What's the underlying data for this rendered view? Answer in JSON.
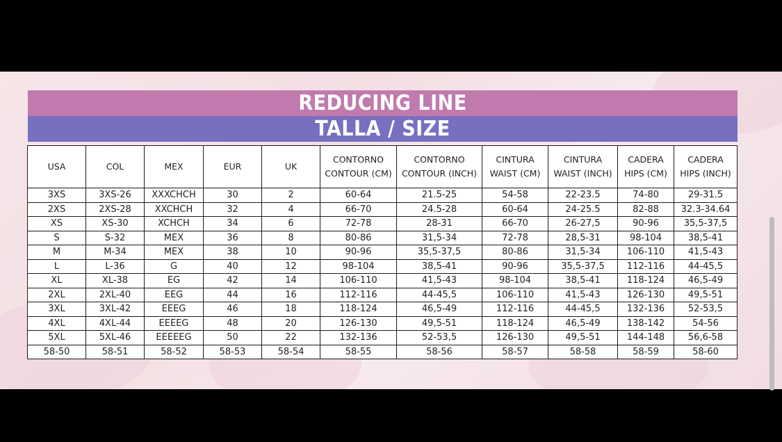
{
  "title": "REDUCING LINE",
  "subtitle": "TALLA / SIZE",
  "columns": [
    [
      "USA"
    ],
    [
      "COL"
    ],
    [
      "MEX"
    ],
    [
      "EUR"
    ],
    [
      "UK"
    ],
    [
      "CONTORNO",
      "CONTOUR (CM)"
    ],
    [
      "CONTORNO",
      "CONTOUR (INCH)"
    ],
    [
      "CINTURA",
      "WAIST (CM)"
    ],
    [
      "CINTURA",
      "WAIST (INCH)"
    ],
    [
      "CADERA",
      "HIPS (CM)"
    ],
    [
      "CADERA",
      "HIPS (INCH)"
    ]
  ],
  "rows": [
    [
      "3XS",
      "3XS-26",
      "XXXCHCH",
      "30",
      "2",
      "60-64",
      "21.5-25",
      "54-58",
      "22-23.5",
      "74-80",
      "29-31.5"
    ],
    [
      "2XS",
      "2XS-28",
      "XXCHCH",
      "32",
      "4",
      "66-70",
      "24.5-28",
      "60-64",
      "24-25.5",
      "82-88",
      "32.3-34.64"
    ],
    [
      "XS",
      "XS-30",
      "XCHCH",
      "34",
      "6",
      "72-78",
      "28-31",
      "66-70",
      "26-27,5",
      "90-96",
      "35,5-37,5"
    ],
    [
      "S",
      "S-32",
      "MEX",
      "36",
      "8",
      "80-86",
      "31,5-34",
      "72-78",
      "28,5-31",
      "98-104",
      "38,5-41"
    ],
    [
      "M",
      "M-34",
      "MEX",
      "38",
      "10",
      "90-96",
      "35,5-37,5",
      "80-86",
      "31,5-34",
      "106-110",
      "41,5-43"
    ],
    [
      "L",
      "L-36",
      "G",
      "40",
      "12",
      "98-104",
      "38,5-41",
      "90-96",
      "35,5-37,5",
      "112-116",
      "44-45,5"
    ],
    [
      "XL",
      "XL-38",
      "EG",
      "42",
      "14",
      "106-110",
      "41,5-43",
      "98-104",
      "38,5-41",
      "118-124",
      "46,5-49"
    ],
    [
      "2XL",
      "2XL-40",
      "EEG",
      "44",
      "16",
      "112-116",
      "44-45,5",
      "106-110",
      "41,5-43",
      "126-130",
      "49,5-51"
    ],
    [
      "3XL",
      "3XL-42",
      "EEEG",
      "46",
      "18",
      "118-124",
      "46,5-49",
      "112-116",
      "44-45,5",
      "132-136",
      "52-53,5"
    ],
    [
      "4XL",
      "4XL-44",
      "EEEEG",
      "48",
      "20",
      "126-130",
      "49,5-51",
      "118-124",
      "46,5-49",
      "138-142",
      "54-56"
    ],
    [
      "5XL",
      "5XL-46",
      "EEEEEG",
      "50",
      "22",
      "132-136",
      "52-53,5",
      "126-130",
      "49,5-51",
      "144-148",
      "56,6-58"
    ],
    [
      "58-50",
      "58-51",
      "58-52",
      "58-53",
      "58-54",
      "58-55",
      "58-56",
      "58-57",
      "58-58",
      "58-59",
      "58-60"
    ]
  ],
  "colors": {
    "banner_top": "#c07aae",
    "banner_bottom": "#7770c0",
    "background": "#f4e2e6",
    "letterbox": "#000000"
  }
}
